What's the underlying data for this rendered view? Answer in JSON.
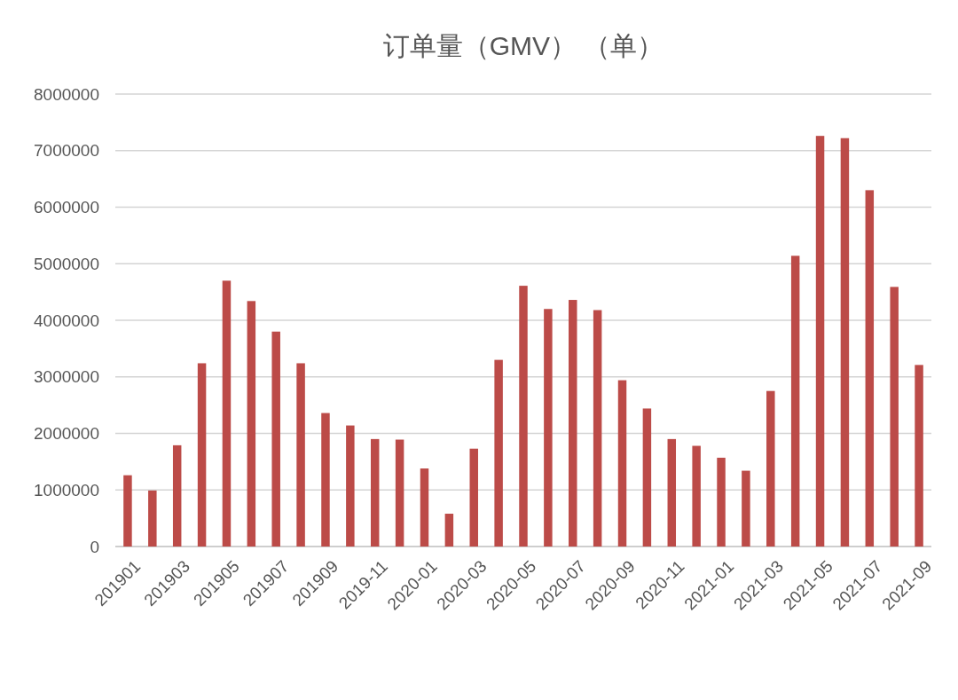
{
  "chart_data": {
    "type": "bar",
    "title": "订单量（GMV） （单）",
    "categories": [
      "201901",
      null,
      "201903",
      null,
      "201905",
      null,
      "201907",
      null,
      "201909",
      null,
      "2019-11",
      null,
      "2020-01",
      null,
      "2020-03",
      null,
      "2020-05",
      null,
      "2020-07",
      null,
      "2020-09",
      null,
      "2020-11",
      null,
      "2021-01",
      null,
      "2021-03",
      null,
      "2021-05",
      null,
      "2021-07",
      null,
      "2021-09"
    ],
    "values": [
      1260000,
      990000,
      1790000,
      3240000,
      4700000,
      4340000,
      3800000,
      3240000,
      2360000,
      2140000,
      1900000,
      1890000,
      1380000,
      580000,
      1730000,
      3300000,
      4610000,
      4200000,
      4360000,
      4180000,
      2940000,
      2440000,
      1900000,
      1780000,
      1570000,
      1340000,
      2750000,
      5140000,
      7260000,
      7220000,
      6300000,
      4590000,
      3210000
    ],
    "color": "#bc4b48",
    "ylim": [
      0,
      8000000
    ],
    "yticks": [
      0,
      1000000,
      2000000,
      3000000,
      4000000,
      5000000,
      6000000,
      7000000,
      8000000
    ],
    "grid": "y"
  }
}
